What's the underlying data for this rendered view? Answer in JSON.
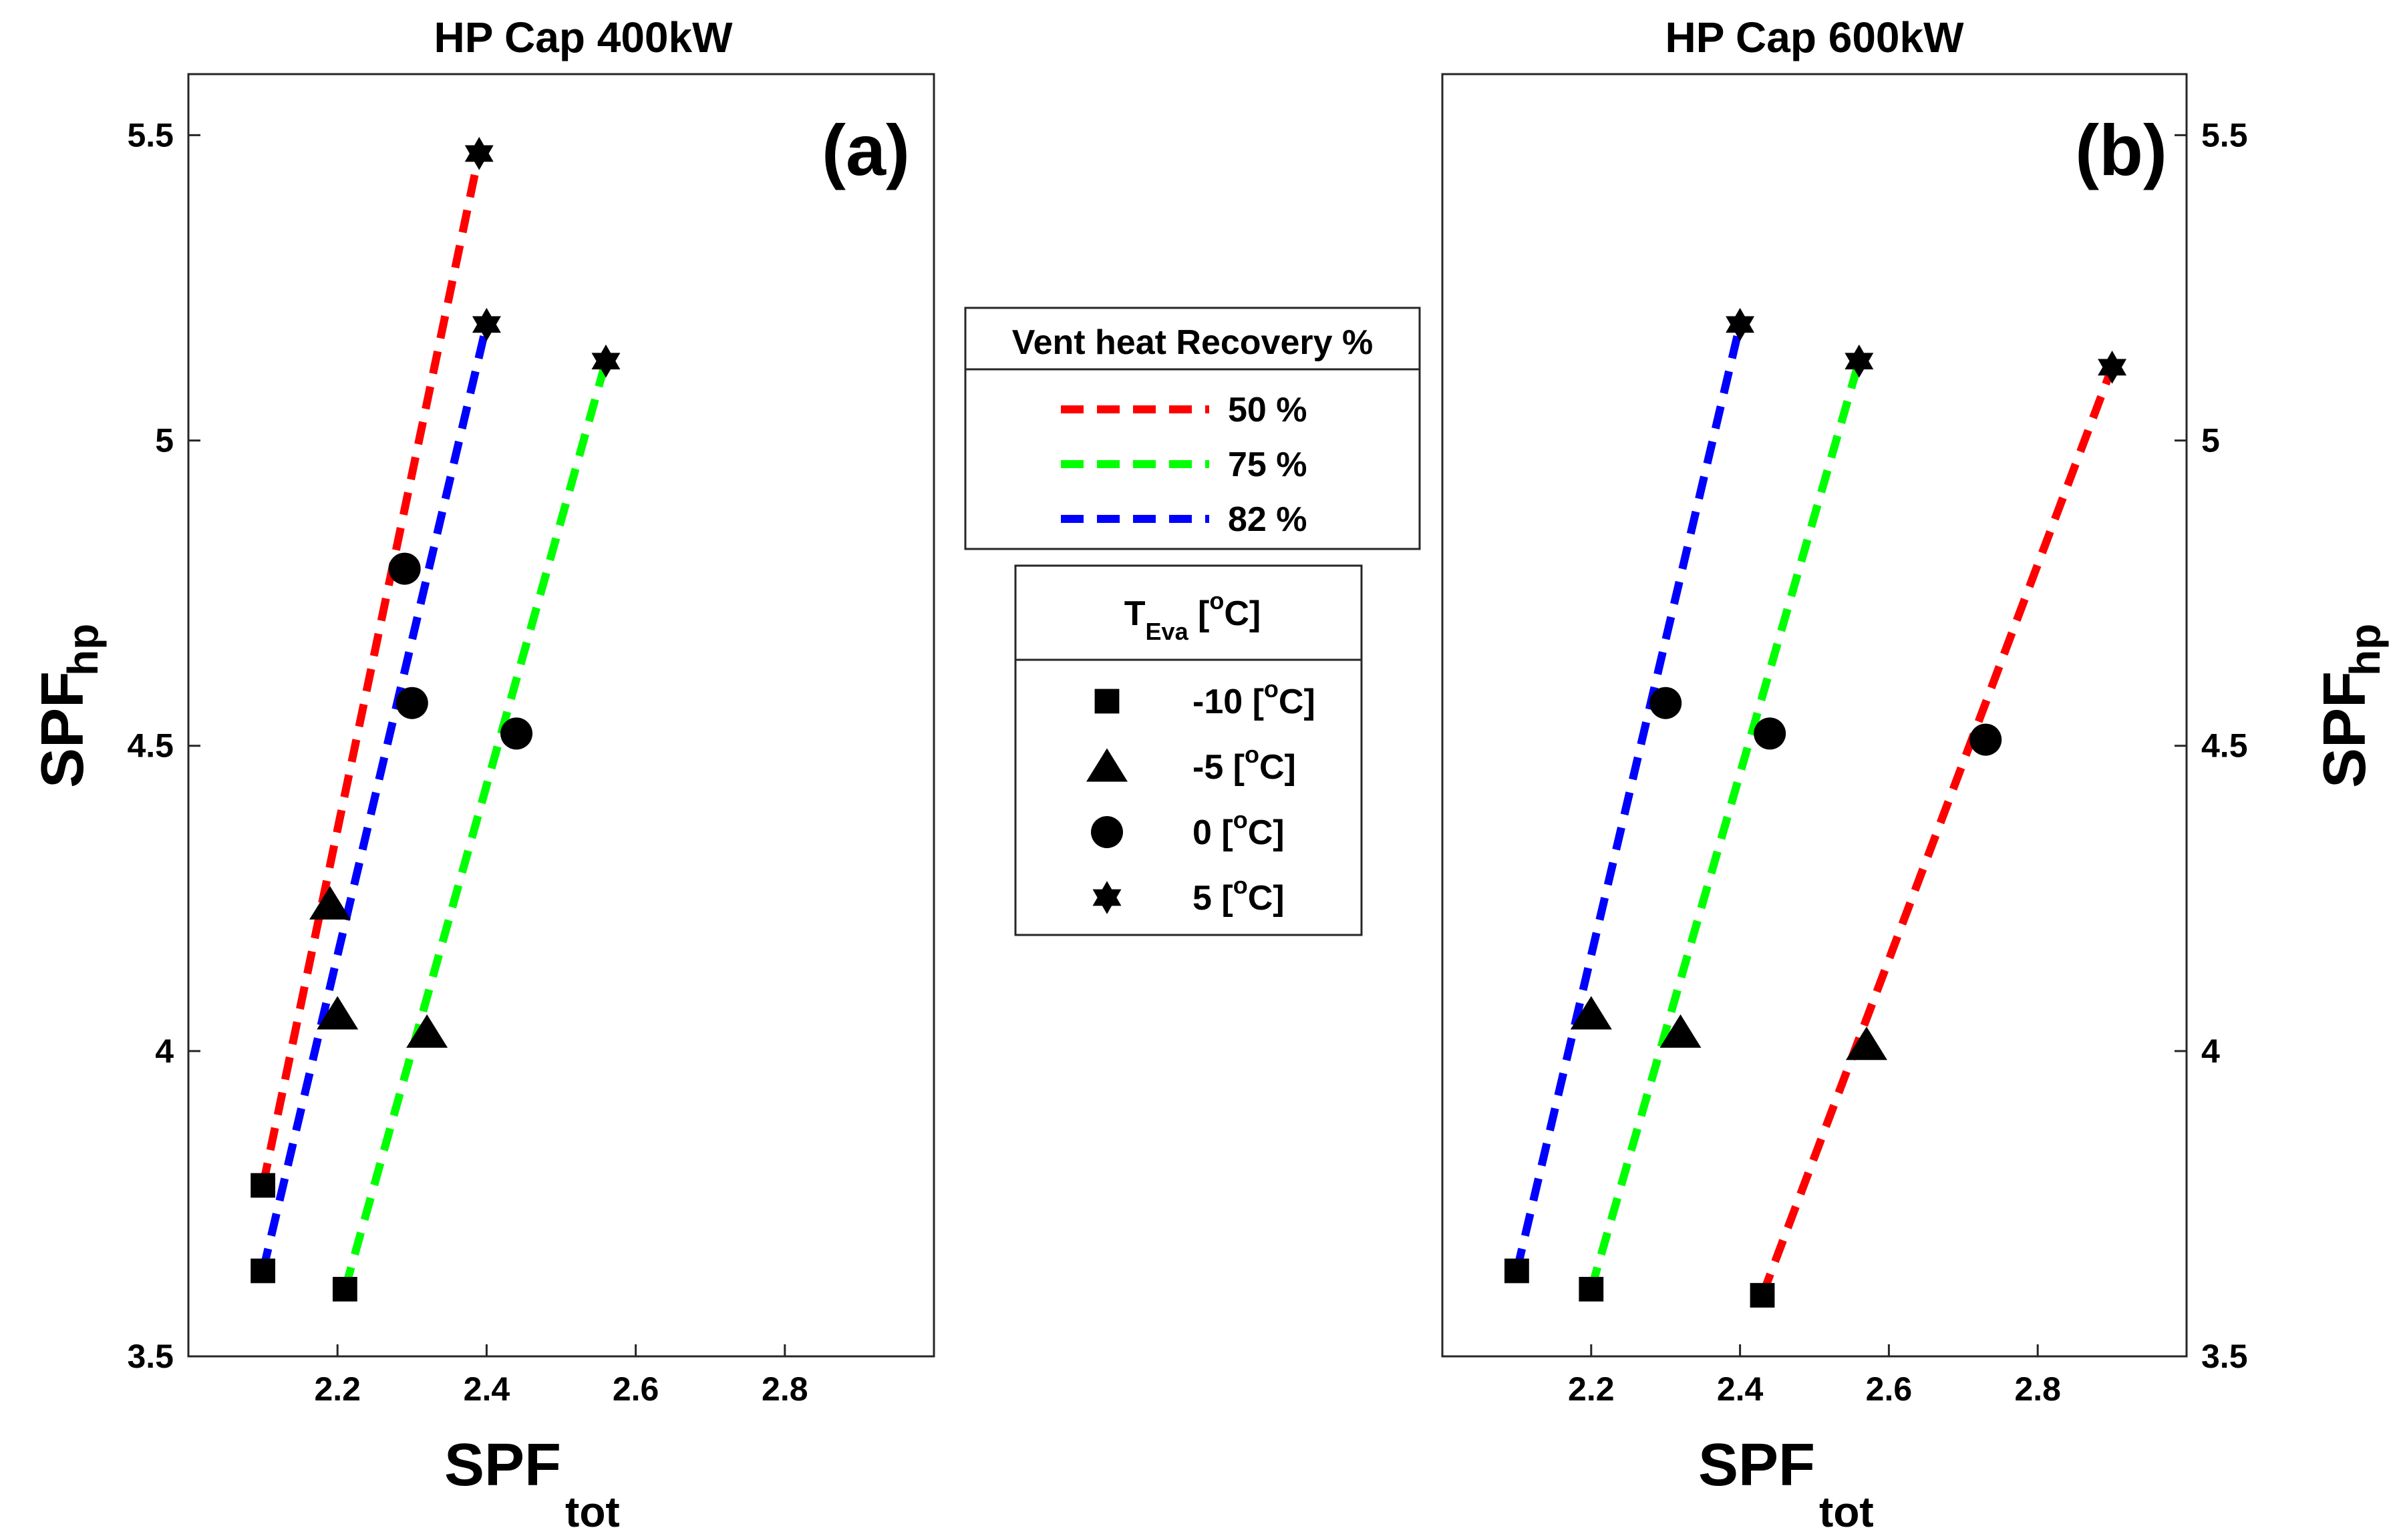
{
  "chart_data": [
    {
      "type": "scatter",
      "title": "HP Cap 400kW",
      "panel_label": "(a)",
      "xlabel": {
        "main": "SPF",
        "sub": "tot"
      },
      "ylabel": {
        "main": "SPF",
        "sub": "hp"
      },
      "xlim": [
        2.0,
        3.0
      ],
      "ylim": [
        3.5,
        5.6
      ],
      "xticks": [
        2.2,
        2.4,
        2.6,
        2.8
      ],
      "yticks": [
        3.5,
        4,
        4.5,
        5,
        5.5
      ],
      "ytick_labels": [
        "3.5",
        "4",
        "4.5",
        "5",
        "5.5"
      ],
      "xtick_labels": [
        "2.2",
        "2.4",
        "2.6",
        "2.8"
      ],
      "yaxis_side": "left",
      "series": [
        {
          "name": "50 %",
          "color": "#ff0000",
          "points": [
            {
              "t": "-10",
              "x": 2.1,
              "y": 3.78
            },
            {
              "t": "-5",
              "x": 2.19,
              "y": 4.24
            },
            {
              "t": "0",
              "x": 2.29,
              "y": 4.79
            },
            {
              "t": "5",
              "x": 2.39,
              "y": 5.47
            }
          ],
          "line": [
            [
              2.1,
              3.78
            ],
            [
              2.39,
              5.47
            ]
          ]
        },
        {
          "name": "75 %",
          "color": "#00ff00",
          "points": [
            {
              "t": "-10",
              "x": 2.21,
              "y": 3.61
            },
            {
              "t": "-5",
              "x": 2.32,
              "y": 4.03
            },
            {
              "t": "0",
              "x": 2.44,
              "y": 4.52
            },
            {
              "t": "5",
              "x": 2.56,
              "y": 5.13
            }
          ],
          "line": [
            [
              2.21,
              3.61
            ],
            [
              2.56,
              5.13
            ]
          ]
        },
        {
          "name": "82 %",
          "color": "#0000ff",
          "points": [
            {
              "t": "-10",
              "x": 2.1,
              "y": 3.64
            },
            {
              "t": "-5",
              "x": 2.2,
              "y": 4.06
            },
            {
              "t": "0",
              "x": 2.3,
              "y": 4.57
            },
            {
              "t": "5",
              "x": 2.4,
              "y": 5.19
            }
          ],
          "line": [
            [
              2.1,
              3.64
            ],
            [
              2.4,
              5.19
            ]
          ]
        }
      ]
    },
    {
      "type": "scatter",
      "title": "HP Cap 600kW",
      "panel_label": "(b)",
      "xlabel": {
        "main": "SPF",
        "sub": "tot"
      },
      "ylabel": {
        "main": "SPF",
        "sub": "hp"
      },
      "xlim": [
        2.0,
        3.0
      ],
      "ylim": [
        3.5,
        5.6
      ],
      "xticks": [
        2.2,
        2.4,
        2.6,
        2.8
      ],
      "yticks": [
        3.5,
        4,
        4.5,
        5,
        5.5
      ],
      "ytick_labels": [
        "3.5",
        "4",
        "4.5",
        "5",
        "5.5"
      ],
      "xtick_labels": [
        "2.2",
        "2.4",
        "2.6",
        "2.8"
      ],
      "yaxis_side": "right",
      "series": [
        {
          "name": "50 %",
          "color": "#ff0000",
          "points": [
            {
              "t": "-10",
              "x": 2.43,
              "y": 3.6
            },
            {
              "t": "-5",
              "x": 2.57,
              "y": 4.01
            },
            {
              "t": "0",
              "x": 2.73,
              "y": 4.51
            },
            {
              "t": "5",
              "x": 2.9,
              "y": 5.12
            }
          ],
          "line": [
            [
              2.43,
              3.6
            ],
            [
              2.9,
              5.12
            ]
          ]
        },
        {
          "name": "75 %",
          "color": "#00ff00",
          "points": [
            {
              "t": "-10",
              "x": 2.2,
              "y": 3.61
            },
            {
              "t": "-5",
              "x": 2.32,
              "y": 4.03
            },
            {
              "t": "0",
              "x": 2.44,
              "y": 4.52
            },
            {
              "t": "5",
              "x": 2.56,
              "y": 5.13
            }
          ],
          "line": [
            [
              2.2,
              3.61
            ],
            [
              2.56,
              5.13
            ]
          ]
        },
        {
          "name": "82 %",
          "color": "#0000ff",
          "points": [
            {
              "t": "-10",
              "x": 2.1,
              "y": 3.64
            },
            {
              "t": "-5",
              "x": 2.2,
              "y": 4.06
            },
            {
              "t": "0",
              "x": 2.3,
              "y": 4.57
            },
            {
              "t": "5",
              "x": 2.4,
              "y": 5.19
            }
          ],
          "line": [
            [
              2.1,
              3.64
            ],
            [
              2.4,
              5.19
            ]
          ]
        }
      ]
    }
  ],
  "legend_vent": {
    "title": "Vent heat Recovery %",
    "items": [
      {
        "label": "50 %",
        "color": "#ff0000"
      },
      {
        "label": "75 %",
        "color": "#00ff00"
      },
      {
        "label": "82 %",
        "color": "#0000ff"
      }
    ]
  },
  "legend_teva": {
    "title_main": "T",
    "title_sub": "Eva",
    "title_rest": " [",
    "title_sup": "o",
    "title_end": "C]",
    "items": [
      {
        "marker": "square-icon",
        "pre": "-10 [",
        "sup": "o",
        "post": "C]"
      },
      {
        "marker": "triangle-icon",
        "pre": "-5 [",
        "sup": "o",
        "post": "C]"
      },
      {
        "marker": "circle-icon",
        "pre": "0 [",
        "sup": "o",
        "post": "C]"
      },
      {
        "marker": "hexagram-icon",
        "pre": "5 [",
        "sup": "o",
        "post": "C]"
      }
    ]
  }
}
